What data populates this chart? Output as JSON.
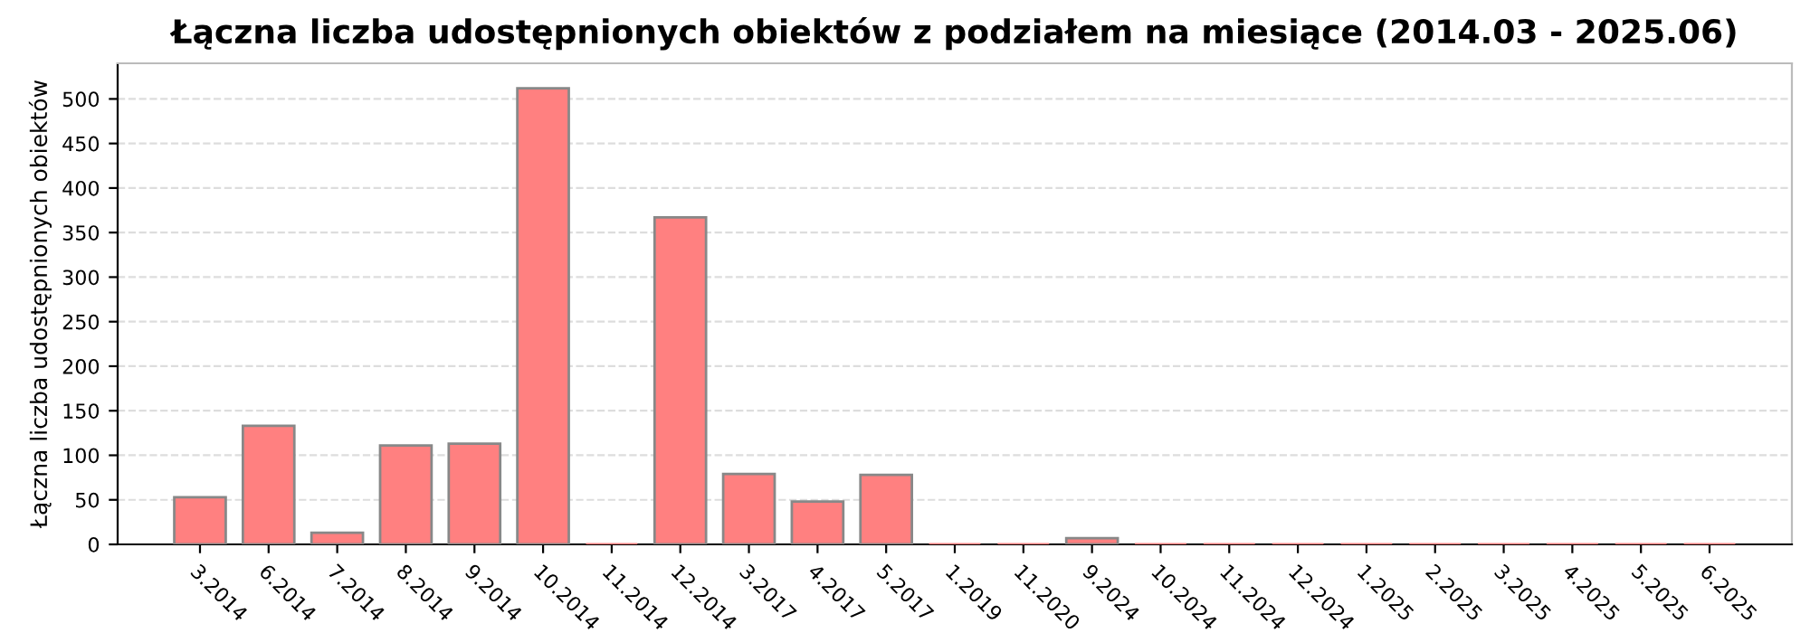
{
  "chart_data": {
    "type": "bar",
    "title": "Łączna liczba udostępnionych obiektów z podziałem na miesiące (2014.03 - 2025.06)",
    "ylabel": "Łączna liczba udostępnionych obiektów",
    "categories": [
      "3.2014",
      "6.2014",
      "7.2014",
      "8.2014",
      "9.2014",
      "10.2014",
      "11.2014",
      "12.2014",
      "3.2017",
      "4.2017",
      "5.2017",
      "1.2019",
      "11.2020",
      "9.2024",
      "10.2024",
      "11.2024",
      "12.2024",
      "1.2025",
      "2.2025",
      "3.2025",
      "4.2025",
      "5.2025",
      "6.2025"
    ],
    "values": [
      53,
      133,
      13,
      111,
      113,
      512,
      0,
      367,
      79,
      48,
      78,
      0,
      0,
      7,
      0,
      0,
      0,
      0,
      0,
      0,
      0,
      0,
      0
    ],
    "color": "#ff8080",
    "ylim": [
      0,
      540
    ],
    "yticks": [
      0,
      50,
      100,
      150,
      200,
      250,
      300,
      350,
      400,
      450,
      500
    ],
    "grid": "y"
  }
}
